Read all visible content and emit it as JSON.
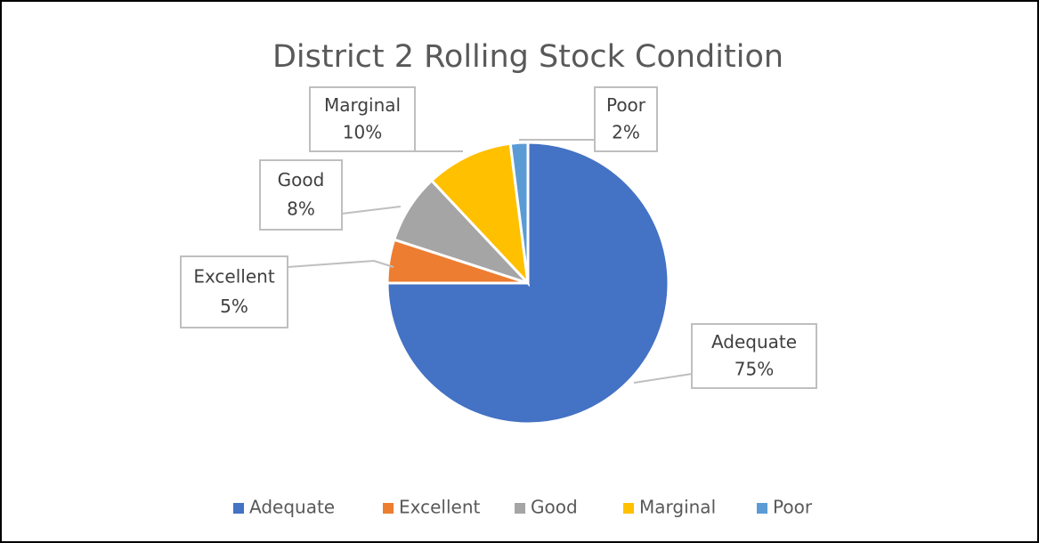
{
  "chart_data": {
    "type": "pie",
    "title": "District 2 Rolling Stock Condition",
    "categories": [
      "Adequate",
      "Excellent",
      "Good",
      "Marginal",
      "Poor"
    ],
    "values": [
      75,
      5,
      8,
      10,
      2
    ],
    "value_labels": [
      "75%",
      "5%",
      "8%",
      "10%",
      "2%"
    ],
    "colors": [
      "#4472c4",
      "#ed7d31",
      "#a5a5a5",
      "#ffc000",
      "#5b9bd5"
    ],
    "legend": "bottom"
  }
}
